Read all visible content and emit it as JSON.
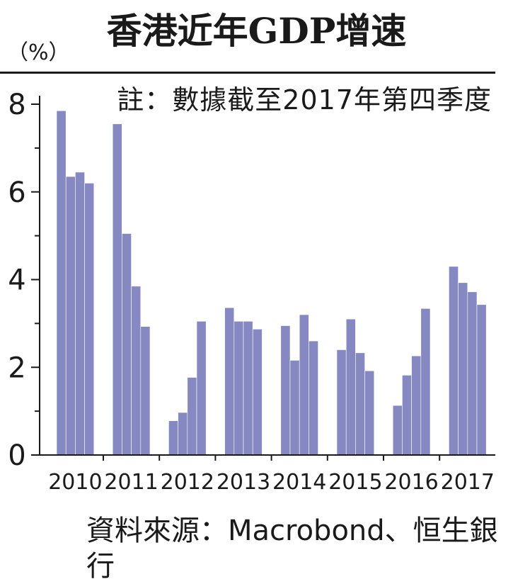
{
  "title": "香港近年GDP增速",
  "unit": "（%）",
  "note": "註：數據截至2017年第四季度",
  "source": "資料來源：Macrobond、恒生銀行",
  "colors": {
    "bar": "#8688c2",
    "axis": "#1a1a1a"
  },
  "chart_data": {
    "type": "bar",
    "title": "香港近年GDP增速",
    "ylabel": "（%）",
    "xlabel": "",
    "ylim": [
      0,
      8
    ],
    "yticks": [
      0,
      2,
      4,
      6,
      8
    ],
    "grid": false,
    "categories": [
      "2010",
      "2011",
      "2012",
      "2013",
      "2014",
      "2015",
      "2016",
      "2017"
    ],
    "quarterly_values": [
      [
        7.85,
        6.35,
        6.45,
        6.2
      ],
      [
        7.55,
        5.05,
        3.85,
        2.93
      ],
      [
        0.78,
        0.97,
        1.77,
        3.05
      ],
      [
        3.36,
        3.05,
        3.05,
        2.87
      ],
      [
        2.95,
        2.16,
        3.2,
        2.6
      ],
      [
        2.4,
        3.1,
        2.33,
        1.92
      ],
      [
        1.13,
        1.82,
        2.26,
        3.34
      ],
      [
        4.3,
        3.93,
        3.72,
        3.43
      ]
    ]
  }
}
